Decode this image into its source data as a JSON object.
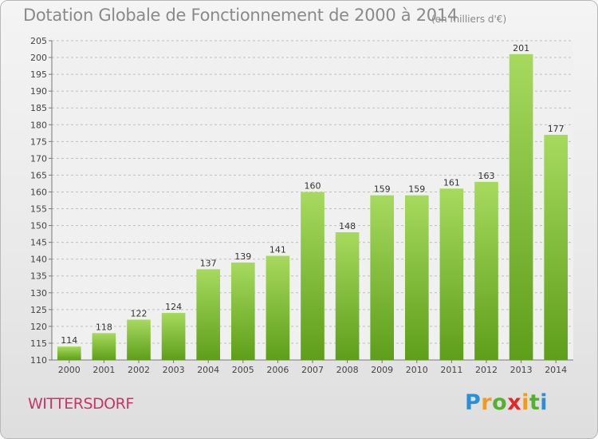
{
  "header": {
    "title": "Dotation Globale de Fonctionnement de 2000 à 2014",
    "unit": "(en milliers d'€)"
  },
  "footer": {
    "place": "WITTERSDORF",
    "logo": [
      "P",
      "r",
      "o",
      "x",
      "i",
      "t",
      "i"
    ],
    "logo_colors": [
      "#2a8fd6",
      "#f39a1c",
      "#56b030",
      "#e22828",
      "#f39a1c",
      "#56b030",
      "#2a8fd6"
    ]
  },
  "colors": {
    "bar_top": "#a6da5e",
    "bar_bottom": "#5e9e1a",
    "grid": "#bfbfbf",
    "axis": "#777777"
  },
  "chart_data": {
    "type": "bar",
    "title": "Dotation Globale de Fonctionnement de 2000 à 2014",
    "subtitle": "(en milliers d'€)",
    "xlabel": "",
    "ylabel": "",
    "categories": [
      "2000",
      "2001",
      "2002",
      "2003",
      "2004",
      "2005",
      "2006",
      "2007",
      "2008",
      "2009",
      "2010",
      "2011",
      "2012",
      "2013",
      "2014"
    ],
    "values": [
      114,
      118,
      122,
      124,
      137,
      139,
      141,
      160,
      148,
      159,
      159,
      161,
      163,
      201,
      177
    ],
    "ylim": [
      110,
      205
    ],
    "yticks": [
      110,
      115,
      120,
      125,
      130,
      135,
      140,
      145,
      150,
      155,
      160,
      165,
      170,
      175,
      180,
      185,
      190,
      195,
      200,
      205
    ],
    "grid": true
  }
}
